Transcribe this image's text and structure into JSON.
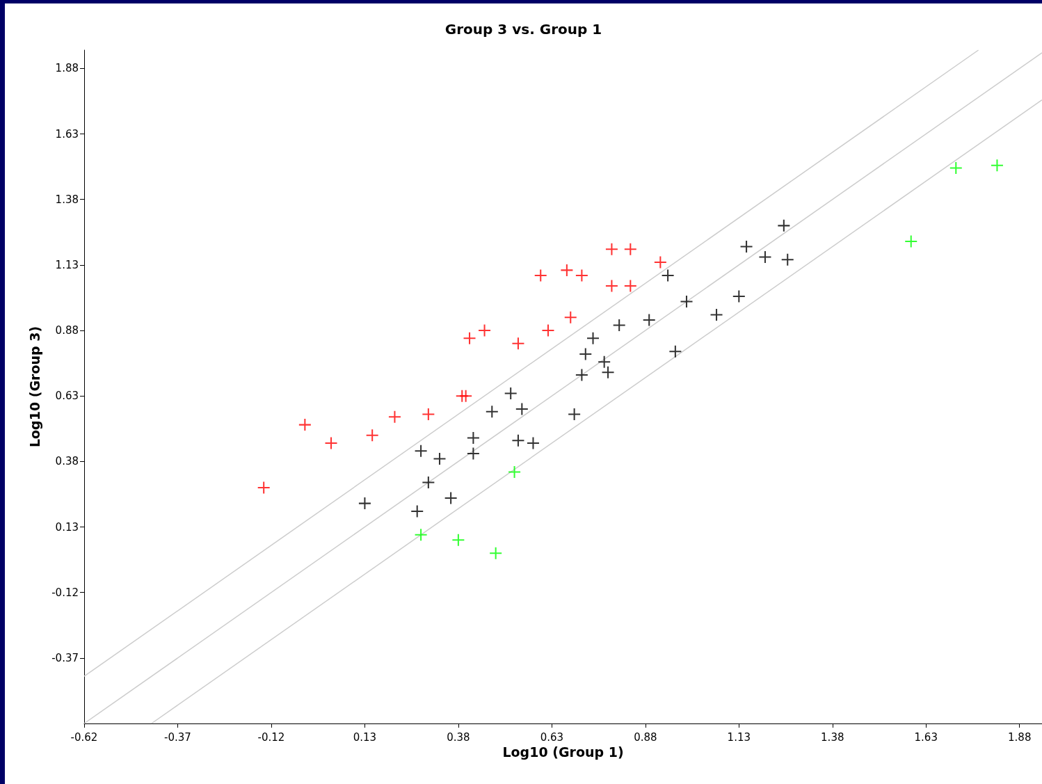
{
  "chart_data": {
    "type": "scatter",
    "title": "Group 3 vs. Group 1",
    "xlabel": "Log10 (Group 1)",
    "ylabel": "Log10 (Group 3)",
    "xlim": [
      -0.62,
      1.94
    ],
    "ylim": [
      -0.62,
      1.95
    ],
    "xticks": [
      -0.62,
      -0.37,
      -0.12,
      0.13,
      0.38,
      0.63,
      0.88,
      1.13,
      1.38,
      1.63,
      1.88
    ],
    "yticks": [
      -0.37,
      -0.12,
      0.13,
      0.38,
      0.63,
      0.88,
      1.13,
      1.38,
      1.63,
      1.88
    ],
    "grid": false,
    "marker": "cross",
    "series": [
      {
        "type": "line",
        "marker": "none",
        "color": "#cccccc",
        "x": [
          -0.62,
          1.77
        ],
        "values": [
          -0.44,
          1.95
        ]
      },
      {
        "type": "line",
        "marker": "none",
        "color": "#cccccc",
        "x": [
          -0.62,
          1.94
        ],
        "values": [
          -0.62,
          1.94
        ]
      },
      {
        "type": "line",
        "marker": "none",
        "color": "#cccccc",
        "x": [
          -0.44,
          1.94
        ],
        "values": [
          -0.62,
          1.76
        ]
      },
      {
        "color": "#ff0000",
        "x": [
          -0.14,
          -0.03,
          0.04,
          0.15,
          0.21,
          0.3,
          0.39,
          0.4,
          0.41,
          0.45,
          0.54,
          0.62,
          0.6,
          0.67,
          0.71,
          0.68,
          0.79,
          0.84,
          0.79,
          0.84,
          0.92
        ],
        "values": [
          0.28,
          0.52,
          0.45,
          0.48,
          0.55,
          0.56,
          0.63,
          0.63,
          0.85,
          0.88,
          0.83,
          0.88,
          1.09,
          1.11,
          1.09,
          0.93,
          1.19,
          1.19,
          1.05,
          1.05,
          1.14
        ]
      },
      {
        "color": "#000000",
        "x": [
          0.13,
          0.27,
          0.28,
          0.3,
          0.33,
          0.36,
          0.42,
          0.42,
          0.47,
          0.52,
          0.55,
          0.54,
          0.58,
          0.69,
          0.71,
          0.72,
          0.74,
          0.77,
          0.78,
          0.81,
          0.89,
          0.94,
          0.96,
          0.99,
          1.07,
          1.13,
          1.15,
          1.2,
          1.25,
          1.26
        ],
        "values": [
          0.22,
          0.19,
          0.42,
          0.3,
          0.39,
          0.24,
          0.47,
          0.41,
          0.57,
          0.64,
          0.58,
          0.46,
          0.45,
          0.56,
          0.71,
          0.79,
          0.85,
          0.76,
          0.72,
          0.9,
          0.92,
          1.09,
          0.8,
          0.99,
          0.94,
          1.01,
          1.2,
          1.16,
          1.28,
          1.15
        ]
      },
      {
        "color": "#00ff00",
        "x": [
          0.28,
          0.38,
          0.48,
          0.53,
          1.59,
          1.71,
          1.82
        ],
        "values": [
          0.1,
          0.08,
          0.03,
          0.34,
          1.22,
          1.5,
          1.51
        ]
      }
    ]
  }
}
